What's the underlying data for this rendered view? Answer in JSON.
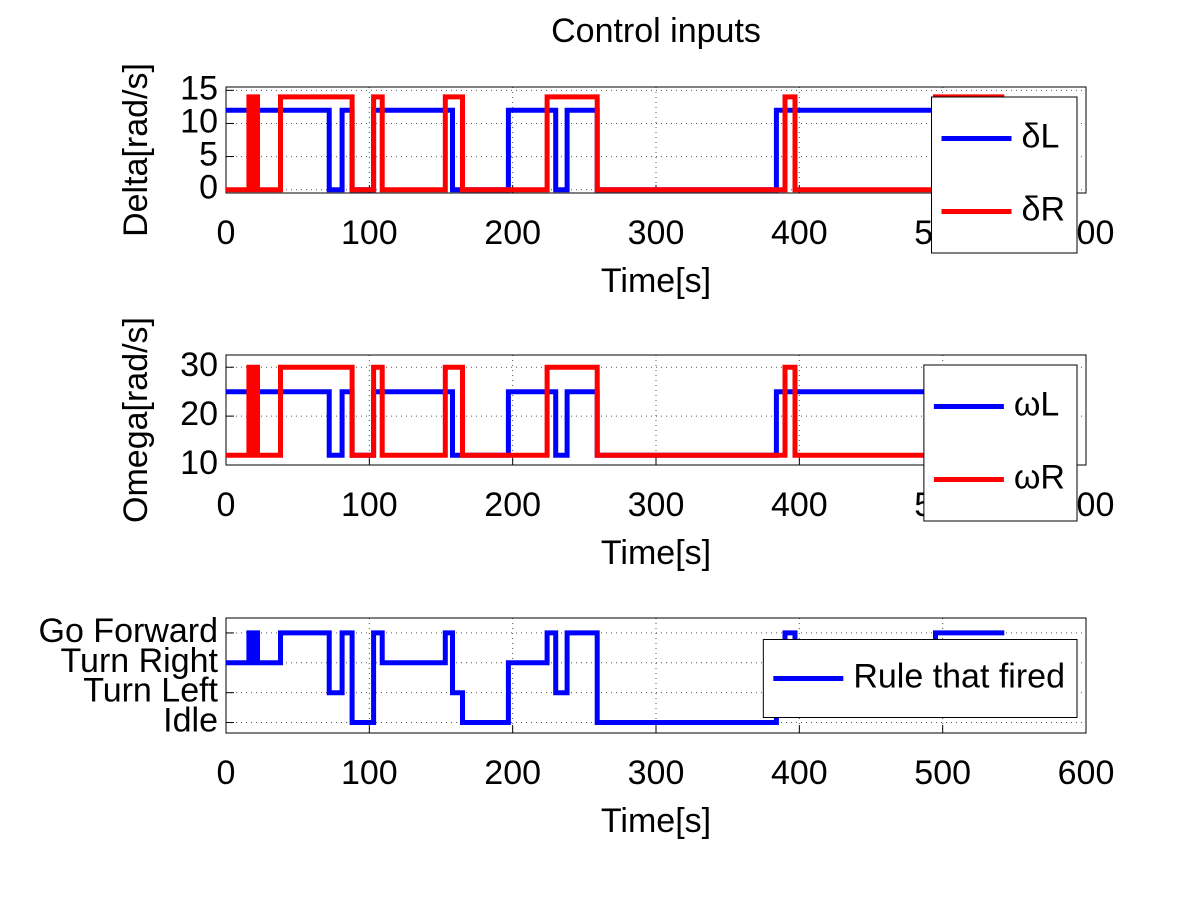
{
  "chart_data": [
    {
      "type": "line",
      "title": "Control inputs",
      "xlabel": "Time[s]",
      "ylabel": "Delta[rad/s]",
      "x": [
        0,
        16,
        16,
        18,
        18,
        20,
        20,
        22,
        22,
        38,
        38,
        72,
        72,
        81,
        81,
        88,
        88,
        103,
        103,
        109,
        109,
        153,
        153,
        158,
        158,
        165,
        165,
        197,
        197,
        224,
        224,
        230,
        230,
        238,
        238,
        259,
        259,
        384,
        384,
        390,
        390,
        397,
        397,
        495,
        495,
        543
      ],
      "series": [
        {
          "name": "δL",
          "color": "#0000ff",
          "values": [
            12,
            12,
            12,
            12,
            12,
            12,
            12,
            12,
            12,
            12,
            12,
            12,
            0,
            0,
            12,
            12,
            0,
            0,
            12,
            12,
            12,
            12,
            12,
            12,
            0,
            0,
            0,
            0,
            12,
            12,
            12,
            12,
            0,
            0,
            12,
            12,
            0,
            0,
            12,
            12,
            12,
            12,
            12,
            12,
            12,
            12
          ]
        },
        {
          "name": "δR",
          "color": "#ff0000",
          "values": [
            0,
            0,
            14,
            14,
            0,
            0,
            14,
            14,
            0,
            0,
            14,
            14,
            14,
            14,
            14,
            14,
            0,
            0,
            14,
            14,
            0,
            0,
            14,
            14,
            14,
            14,
            0,
            0,
            0,
            0,
            14,
            14,
            14,
            14,
            14,
            14,
            0,
            0,
            0,
            0,
            14,
            14,
            0,
            0,
            14,
            14
          ]
        }
      ],
      "xlim": [
        0,
        600
      ],
      "xticks": [
        0,
        100,
        200,
        300,
        400,
        500,
        600
      ],
      "ylim": [
        -0.5,
        15.5
      ],
      "yticks": [
        0,
        5,
        10,
        15
      ],
      "grid": true,
      "legend": "northeast"
    },
    {
      "type": "line",
      "xlabel": "Time[s]",
      "ylabel": "Omega[rad/s]",
      "x": [
        0,
        16,
        16,
        18,
        18,
        20,
        20,
        22,
        22,
        38,
        38,
        72,
        72,
        81,
        81,
        88,
        88,
        103,
        103,
        109,
        109,
        153,
        153,
        158,
        158,
        165,
        165,
        197,
        197,
        224,
        224,
        230,
        230,
        238,
        238,
        259,
        259,
        384,
        384,
        390,
        390,
        397,
        397,
        495,
        495,
        543
      ],
      "series": [
        {
          "name": "ωL",
          "color": "#0000ff",
          "values": [
            25,
            25,
            25,
            25,
            25,
            25,
            25,
            25,
            25,
            25,
            25,
            25,
            12,
            12,
            25,
            25,
            12,
            12,
            25,
            25,
            25,
            25,
            25,
            25,
            12,
            12,
            12,
            12,
            25,
            25,
            25,
            25,
            12,
            12,
            25,
            25,
            12,
            12,
            25,
            25,
            25,
            25,
            25,
            25,
            25,
            25
          ]
        },
        {
          "name": "ωR",
          "color": "#ff0000",
          "values": [
            12,
            12,
            30,
            30,
            12,
            12,
            30,
            30,
            12,
            12,
            30,
            30,
            30,
            30,
            30,
            30,
            12,
            12,
            30,
            30,
            12,
            12,
            30,
            30,
            30,
            30,
            12,
            12,
            12,
            12,
            30,
            30,
            30,
            30,
            30,
            30,
            12,
            12,
            12,
            12,
            30,
            30,
            12,
            12,
            30,
            30
          ]
        }
      ],
      "xlim": [
        0,
        600
      ],
      "xticks": [
        0,
        100,
        200,
        300,
        400,
        500,
        600
      ],
      "ylim": [
        10,
        32.5
      ],
      "yticks": [
        10,
        20,
        30
      ],
      "grid": true,
      "legend": "northeast"
    },
    {
      "type": "line",
      "xlabel": "Time[s]",
      "x": [
        0,
        16,
        16,
        18,
        18,
        20,
        20,
        22,
        22,
        38,
        38,
        72,
        72,
        81,
        81,
        88,
        88,
        103,
        103,
        109,
        109,
        153,
        153,
        158,
        158,
        165,
        165,
        197,
        197,
        224,
        224,
        230,
        230,
        238,
        238,
        259,
        259,
        384,
        384,
        390,
        390,
        397,
        397,
        495,
        495,
        543
      ],
      "series": [
        {
          "name": "Rule that fired",
          "color": "#0000ff",
          "values": [
            2,
            2,
            3,
            3,
            2,
            2,
            3,
            3,
            2,
            2,
            3,
            3,
            1,
            1,
            3,
            3,
            0,
            0,
            3,
            3,
            2,
            2,
            3,
            3,
            1,
            1,
            0,
            0,
            2,
            2,
            3,
            3,
            1,
            1,
            3,
            3,
            0,
            0,
            2,
            2,
            3,
            3,
            2,
            2,
            3,
            3
          ]
        }
      ],
      "xlim": [
        0,
        600
      ],
      "xticks": [
        0,
        100,
        200,
        300,
        400,
        500,
        600
      ],
      "ylim": [
        -0.35,
        3.5
      ],
      "yticks": [
        {
          "value": 0,
          "label": "Idle"
        },
        {
          "value": 1,
          "label": "Turn Left"
        },
        {
          "value": 2,
          "label": "Turn Right"
        },
        {
          "value": 3,
          "label": "Go Forward"
        }
      ],
      "grid": true,
      "legend": "east"
    }
  ]
}
